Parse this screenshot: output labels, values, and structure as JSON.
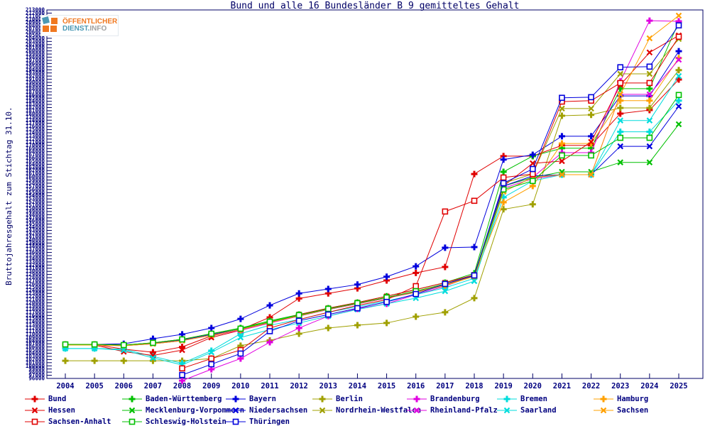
{
  "title": "Bund und alle 16 Bundesländer B 9 gemitteltes Gehalt",
  "y_axis_label": "Bruttojahresgehalt zum Stichtag 31.10.",
  "logo": {
    "line1": "ÖFFENTLICHER",
    "line2_teal": "DIENST.",
    "line2_gray": "INFO"
  },
  "colors": {
    "background": "#ffffff",
    "frame": "#000066",
    "tick_text": "#000080",
    "title_text": "#000066",
    "logo_orange": "#f07820",
    "logo_teal": "#4a99b5",
    "logo_gray": "#a0a0a0"
  },
  "chart_data": {
    "type": "line",
    "x": [
      2004,
      2005,
      2006,
      2007,
      2008,
      2009,
      2010,
      2011,
      2012,
      2013,
      2014,
      2015,
      2016,
      2017,
      2018,
      2019,
      2020,
      2021,
      2022,
      2023,
      2024,
      2025
    ],
    "ylim": [
      96000,
      213000
    ],
    "ytick_step": 1000,
    "grid": false,
    "legend_position": "bottom",
    "series": [
      {
        "name": "Bund",
        "color": "#e00000",
        "marker": "plus",
        "values": [
          106800,
          106800,
          105300,
          104300,
          106000,
          109500,
          111500,
          115400,
          121400,
          123000,
          124600,
          127100,
          129500,
          131400,
          160900,
          166600,
          166600,
          170000,
          170000,
          180100,
          181200,
          190900
        ]
      },
      {
        "name": "Baden-Württemberg",
        "color": "#00c000",
        "marker": "plus",
        "values": [
          106800,
          106800,
          106600,
          107300,
          108400,
          110200,
          112000,
          114300,
          116300,
          118300,
          120100,
          122100,
          124200,
          126400,
          129400,
          161600,
          166600,
          169100,
          169100,
          188000,
          188000,
          209200
        ]
      },
      {
        "name": "Bayern",
        "color": "#0000dd",
        "marker": "plus",
        "values": [
          106800,
          106800,
          107000,
          108600,
          110000,
          112000,
          114900,
          119200,
          123000,
          124400,
          125800,
          128300,
          131600,
          137500,
          137700,
          165500,
          167000,
          172900,
          172900,
          185700,
          185700,
          199900
        ]
      },
      {
        "name": "Berlin",
        "color": "#a0a000",
        "marker": "plus",
        "values": [
          101600,
          101600,
          101600,
          101600,
          101600,
          102300,
          106400,
          108100,
          110200,
          112000,
          112900,
          113600,
          115600,
          117000,
          121500,
          149700,
          151300,
          179400,
          179700,
          181900,
          181900,
          193900
        ]
      },
      {
        "name": "Brandenburg",
        "color": "#e000e0",
        "marker": "plus",
        "values": [
          null,
          null,
          null,
          null,
          95300,
          98900,
          102300,
          107500,
          112000,
          115800,
          118100,
          119700,
          122600,
          125300,
          128700,
          157100,
          159800,
          167700,
          167700,
          190300,
          209600,
          209400
        ]
      },
      {
        "name": "Bremen",
        "color": "#00dcdc",
        "marker": "plus",
        "values": [
          105500,
          105500,
          105300,
          103000,
          100800,
          104800,
          110200,
          112900,
          114700,
          117000,
          118800,
          120600,
          122600,
          124800,
          127800,
          153500,
          158700,
          160700,
          160700,
          174300,
          174300,
          184200
        ]
      },
      {
        "name": "Hamburg",
        "color": "#ffa000",
        "marker": "plus",
        "values": [
          106800,
          106800,
          106600,
          107300,
          108400,
          110200,
          111300,
          113600,
          115800,
          117900,
          119700,
          121500,
          123300,
          125500,
          128400,
          151900,
          157100,
          170600,
          170600,
          184200,
          184200,
          197700
        ]
      },
      {
        "name": "Hessen",
        "color": "#e00000",
        "marker": "cross",
        "values": [
          106800,
          106600,
          104500,
          103300,
          105000,
          109000,
          111300,
          113600,
          116300,
          118300,
          120100,
          122100,
          124200,
          126400,
          128900,
          157100,
          164300,
          165000,
          171100,
          189200,
          199500,
          204900
        ]
      },
      {
        "name": "Mecklenburg-Vorpommern",
        "color": "#00c000",
        "marker": "cross",
        "values": [
          106600,
          106600,
          106400,
          107000,
          108000,
          109700,
          111500,
          113800,
          115800,
          117900,
          119700,
          121500,
          123500,
          125800,
          128400,
          157100,
          159800,
          161600,
          161600,
          164600,
          164600,
          176700
        ]
      },
      {
        "name": "Niedersachsen",
        "color": "#0000dd",
        "marker": "cross",
        "values": [
          106800,
          106800,
          106600,
          107200,
          108200,
          110000,
          111500,
          113800,
          115900,
          118000,
          119800,
          121600,
          123500,
          125800,
          128700,
          157100,
          160300,
          160700,
          160700,
          169700,
          169700,
          182400
        ]
      },
      {
        "name": "Nordrhein-Westfalen",
        "color": "#a0a000",
        "marker": "cross",
        "values": [
          106800,
          106800,
          106600,
          107300,
          108400,
          110200,
          111800,
          114000,
          116100,
          118100,
          119900,
          121700,
          123700,
          126000,
          128700,
          158000,
          160900,
          181700,
          181700,
          192700,
          192700,
          203800
        ]
      },
      {
        "name": "Rheinland-Pfalz",
        "color": "#e000e0",
        "marker": "cross",
        "values": [
          106600,
          106600,
          106400,
          107000,
          108000,
          109700,
          111300,
          113600,
          115800,
          117900,
          119700,
          121500,
          123500,
          125800,
          128400,
          156400,
          159400,
          160700,
          160700,
          186200,
          186200,
          197200
        ]
      },
      {
        "name": "Saarland",
        "color": "#00dcdc",
        "marker": "cross",
        "values": [
          105500,
          105500,
          105000,
          102500,
          100300,
          104300,
          109000,
          111500,
          113600,
          115800,
          117900,
          119700,
          121500,
          123700,
          126900,
          155300,
          159800,
          160700,
          160700,
          177900,
          177900,
          192000
        ]
      },
      {
        "name": "Sachsen",
        "color": "#ffa000",
        "marker": "cross",
        "values": [
          106600,
          106600,
          106400,
          107000,
          108000,
          109700,
          111500,
          113800,
          115900,
          118000,
          119800,
          121600,
          123600,
          125800,
          128400,
          155300,
          159800,
          160700,
          160700,
          186200,
          204000,
          211200
        ]
      },
      {
        "name": "Sachsen-Anhalt",
        "color": "#e00000",
        "marker": "square",
        "values": [
          null,
          null,
          null,
          null,
          99200,
          102300,
          105000,
          112000,
          114700,
          117000,
          119200,
          121000,
          125300,
          149000,
          152400,
          159800,
          160900,
          183900,
          184200,
          189800,
          189800,
          204500
        ]
      },
      {
        "name": "Schleswig-Holstein",
        "color": "#00c000",
        "marker": "square",
        "values": [
          106800,
          106800,
          106600,
          107300,
          108400,
          110200,
          111800,
          114000,
          116100,
          118100,
          119900,
          121700,
          123700,
          126000,
          128700,
          156000,
          158700,
          166800,
          166800,
          172400,
          172400,
          186000
        ]
      },
      {
        "name": "Thüringen",
        "color": "#0000dd",
        "marker": "square",
        "values": [
          null,
          null,
          null,
          null,
          97100,
          100500,
          103900,
          111000,
          114300,
          116300,
          118300,
          120300,
          122800,
          126000,
          128700,
          158000,
          162500,
          185100,
          185300,
          194800,
          195000,
          208100
        ]
      }
    ]
  }
}
